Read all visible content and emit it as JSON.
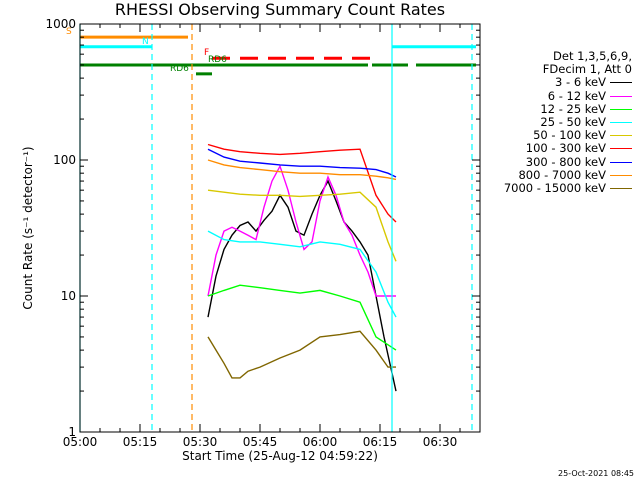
{
  "chart_data": {
    "type": "line",
    "title": "RHESSI Observing Summary Count Rates",
    "xlabel": "Start Time (25-Aug-12 04:59:22)",
    "ylabel": "Count Rate (s⁻¹ detector⁻¹)",
    "y_scale": "log",
    "ylim": [
      1,
      1000
    ],
    "xlim": [
      "05:00",
      "06:40"
    ],
    "x_ticks": [
      "05:00",
      "05:15",
      "05:30",
      "05:45",
      "06:00",
      "06:15",
      "06:30"
    ],
    "y_ticks": [
      "1",
      "10",
      "100",
      "1000"
    ],
    "legend_header": [
      "Det 1,3,5,6,9,",
      "FDecim 1, Att 0"
    ],
    "series": [
      {
        "name": "3 - 6 keV",
        "color": "#000000",
        "points": [
          [
            "05:32",
            7
          ],
          [
            "05:34",
            14
          ],
          [
            "05:36",
            22
          ],
          [
            "05:38",
            28
          ],
          [
            "05:40",
            33
          ],
          [
            "05:42",
            35
          ],
          [
            "05:44",
            30
          ],
          [
            "05:46",
            36
          ],
          [
            "05:48",
            42
          ],
          [
            "05:50",
            55
          ],
          [
            "05:52",
            45
          ],
          [
            "05:54",
            30
          ],
          [
            "05:56",
            28
          ],
          [
            "05:58",
            40
          ],
          [
            "06:00",
            55
          ],
          [
            "06:02",
            70
          ],
          [
            "06:04",
            50
          ],
          [
            "06:06",
            35
          ],
          [
            "06:08",
            30
          ],
          [
            "06:10",
            25
          ],
          [
            "06:12",
            20
          ],
          [
            "06:14",
            10
          ],
          [
            "06:16",
            5
          ],
          [
            "06:19",
            2
          ]
        ]
      },
      {
        "name": "6 - 12 keV",
        "color": "#ff00ff",
        "points": [
          [
            "05:32",
            10
          ],
          [
            "05:34",
            20
          ],
          [
            "05:36",
            30
          ],
          [
            "05:38",
            32
          ],
          [
            "05:40",
            30
          ],
          [
            "05:42",
            28
          ],
          [
            "05:44",
            26
          ],
          [
            "05:46",
            45
          ],
          [
            "05:48",
            70
          ],
          [
            "05:50",
            90
          ],
          [
            "05:52",
            60
          ],
          [
            "05:54",
            35
          ],
          [
            "05:56",
            22
          ],
          [
            "05:58",
            25
          ],
          [
            "06:00",
            50
          ],
          [
            "06:02",
            75
          ],
          [
            "06:04",
            55
          ],
          [
            "06:06",
            35
          ],
          [
            "06:08",
            28
          ],
          [
            "06:10",
            20
          ],
          [
            "06:12",
            15
          ],
          [
            "06:14",
            10
          ],
          [
            "06:17",
            10
          ],
          [
            "06:19",
            10
          ]
        ]
      },
      {
        "name": "12 - 25 keV",
        "color": "#00ff00",
        "points": [
          [
            "05:32",
            10
          ],
          [
            "05:36",
            11
          ],
          [
            "05:40",
            12
          ],
          [
            "05:45",
            11.5
          ],
          [
            "05:50",
            11
          ],
          [
            "05:55",
            10.5
          ],
          [
            "06:00",
            11
          ],
          [
            "06:05",
            10
          ],
          [
            "06:10",
            9
          ],
          [
            "06:14",
            5
          ],
          [
            "06:19",
            4
          ]
        ]
      },
      {
        "name": "25 - 50 keV",
        "color": "#00ffff",
        "points": [
          [
            "05:32",
            30
          ],
          [
            "05:36",
            26
          ],
          [
            "05:40",
            25
          ],
          [
            "05:45",
            25
          ],
          [
            "05:50",
            24
          ],
          [
            "05:55",
            23
          ],
          [
            "06:00",
            25
          ],
          [
            "06:05",
            24
          ],
          [
            "06:10",
            22
          ],
          [
            "06:14",
            15
          ],
          [
            "06:17",
            9
          ],
          [
            "06:19",
            7
          ]
        ]
      },
      {
        "name": "50 - 100 keV",
        "color": "#d8c800",
        "points": [
          [
            "05:32",
            60
          ],
          [
            "05:36",
            58
          ],
          [
            "05:40",
            56
          ],
          [
            "05:45",
            55
          ],
          [
            "05:50",
            55
          ],
          [
            "05:55",
            54
          ],
          [
            "06:00",
            55
          ],
          [
            "06:05",
            56
          ],
          [
            "06:10",
            58
          ],
          [
            "06:14",
            45
          ],
          [
            "06:17",
            25
          ],
          [
            "06:19",
            18
          ]
        ]
      },
      {
        "name": "100 - 300 keV",
        "color": "#ff0000",
        "points": [
          [
            "05:32",
            130
          ],
          [
            "05:36",
            120
          ],
          [
            "05:40",
            115
          ],
          [
            "05:45",
            112
          ],
          [
            "05:50",
            110
          ],
          [
            "05:55",
            112
          ],
          [
            "06:00",
            115
          ],
          [
            "06:05",
            118
          ],
          [
            "06:10",
            120
          ],
          [
            "06:14",
            55
          ],
          [
            "06:17",
            40
          ],
          [
            "06:19",
            35
          ]
        ]
      },
      {
        "name": "300 - 800 keV",
        "color": "#0000ff",
        "points": [
          [
            "05:32",
            120
          ],
          [
            "05:36",
            105
          ],
          [
            "05:40",
            98
          ],
          [
            "05:45",
            95
          ],
          [
            "05:50",
            92
          ],
          [
            "05:55",
            90
          ],
          [
            "06:00",
            90
          ],
          [
            "06:05",
            88
          ],
          [
            "06:10",
            87
          ],
          [
            "06:14",
            85
          ],
          [
            "06:17",
            80
          ],
          [
            "06:19",
            75
          ]
        ]
      },
      {
        "name": "800 - 7000 keV",
        "color": "#ff8c00",
        "points": [
          [
            "05:32",
            100
          ],
          [
            "05:36",
            92
          ],
          [
            "05:40",
            88
          ],
          [
            "05:45",
            85
          ],
          [
            "05:50",
            82
          ],
          [
            "05:55",
            80
          ],
          [
            "06:00",
            80
          ],
          [
            "06:05",
            78
          ],
          [
            "06:10",
            78
          ],
          [
            "06:14",
            76
          ],
          [
            "06:17",
            74
          ],
          [
            "06:19",
            72
          ]
        ]
      },
      {
        "name": "7000 - 15000 keV",
        "color": "#806600",
        "points": [
          [
            "05:32",
            5
          ],
          [
            "05:34",
            4
          ],
          [
            "05:36",
            3.2
          ],
          [
            "05:38",
            2.5
          ],
          [
            "05:40",
            2.5
          ],
          [
            "05:42",
            2.8
          ],
          [
            "05:45",
            3
          ],
          [
            "05:50",
            3.5
          ],
          [
            "05:55",
            4
          ],
          [
            "06:00",
            5
          ],
          [
            "06:05",
            5.2
          ],
          [
            "06:10",
            5.5
          ],
          [
            "06:14",
            4
          ],
          [
            "06:17",
            3
          ],
          [
            "06:19",
            3
          ]
        ]
      }
    ],
    "state_bars": [
      {
        "label": "S",
        "color": "#ff8c00",
        "value": 800,
        "segments": [
          [
            "05:00",
            "05:27"
          ]
        ]
      },
      {
        "label": "N",
        "color": "#00ffff",
        "value": 680,
        "segments": [
          [
            "05:00",
            "05:18"
          ],
          [
            "06:18",
            "06:39"
          ]
        ]
      },
      {
        "label": "F",
        "color": "#ff0000",
        "value": 560,
        "dashed": true,
        "segments": [
          [
            "05:33",
            "06:13"
          ]
        ]
      },
      {
        "label": "RD6",
        "color": "#008000",
        "value": 500,
        "segments": [
          [
            "05:00",
            "06:12"
          ],
          [
            "06:13",
            "06:22"
          ],
          [
            "06:24",
            "06:39"
          ]
        ]
      },
      {
        "label": "RD6",
        "color": "#008000",
        "value": 430,
        "segments": [
          [
            "05:29",
            "05:33"
          ]
        ]
      }
    ],
    "vlines": [
      {
        "time": "05:00",
        "color": "#00ffff",
        "dashed": false
      },
      {
        "time": "05:18",
        "color": "#00ffff",
        "dashed": true
      },
      {
        "time": "05:28",
        "color": "#ff8c00",
        "dashed": true
      },
      {
        "time": "06:18",
        "color": "#00ffff",
        "dashed": false
      },
      {
        "time": "06:38",
        "color": "#00ffff",
        "dashed": true
      }
    ],
    "footer": "25-Oct-2021 08:45"
  }
}
